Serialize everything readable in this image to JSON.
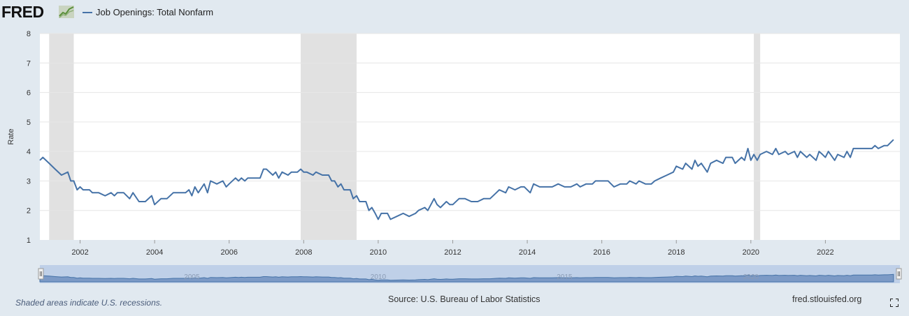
{
  "header": {
    "logo_text": "FRED",
    "legend_label": "Job Openings: Total Nonfarm"
  },
  "footer": {
    "recession_note": "Shaded areas indicate U.S. recessions.",
    "source": "Source: U.S. Bureau of Labor Statistics",
    "site": "fred.stlouisfed.org"
  },
  "navigator": {
    "year_labels": [
      "2005",
      "2010",
      "2015",
      "2020"
    ]
  },
  "colors": {
    "series": "#4572a7",
    "recession": "#e1e1e1",
    "background": "#e1e9f0",
    "plot": "#ffffff",
    "grid": "#e6e6e6",
    "navigator_fill": "#6688bb",
    "navigator_mask": "#bfd0e8"
  },
  "icons": [
    "fred-logo-graph-icon",
    "fullscreen-icon",
    "navigator-left-handle-icon",
    "navigator-right-handle-icon"
  ],
  "chart_data": {
    "type": "line",
    "title": "",
    "ylabel": "Rate",
    "xlabel": "",
    "ylim": [
      1,
      8
    ],
    "yticks": [
      1,
      2,
      3,
      4,
      5,
      6,
      7,
      8
    ],
    "xlim": [
      2000.92,
      2024.0
    ],
    "xticks": [
      2002,
      2004,
      2006,
      2008,
      2010,
      2012,
      2014,
      2016,
      2018,
      2020,
      2022
    ],
    "grid": true,
    "legend_position": "top-left",
    "recessions": [
      [
        2001.17,
        2001.83
      ],
      [
        2007.92,
        2009.42
      ],
      [
        2020.08,
        2020.25
      ]
    ],
    "series": [
      {
        "name": "Job Openings: Total Nonfarm",
        "points": [
          [
            2000.92,
            3.7
          ],
          [
            2001.0,
            3.8
          ],
          [
            2001.17,
            3.6
          ],
          [
            2001.33,
            3.4
          ],
          [
            2001.5,
            3.2
          ],
          [
            2001.67,
            3.3
          ],
          [
            2001.75,
            3.0
          ],
          [
            2001.83,
            3.0
          ],
          [
            2001.92,
            2.7
          ],
          [
            2002.0,
            2.8
          ],
          [
            2002.08,
            2.7
          ],
          [
            2002.25,
            2.7
          ],
          [
            2002.33,
            2.6
          ],
          [
            2002.5,
            2.6
          ],
          [
            2002.67,
            2.5
          ],
          [
            2002.83,
            2.6
          ],
          [
            2002.92,
            2.5
          ],
          [
            2003.0,
            2.6
          ],
          [
            2003.17,
            2.6
          ],
          [
            2003.33,
            2.4
          ],
          [
            2003.42,
            2.6
          ],
          [
            2003.58,
            2.3
          ],
          [
            2003.75,
            2.3
          ],
          [
            2003.92,
            2.5
          ],
          [
            2004.0,
            2.2
          ],
          [
            2004.17,
            2.4
          ],
          [
            2004.33,
            2.4
          ],
          [
            2004.5,
            2.6
          ],
          [
            2004.67,
            2.6
          ],
          [
            2004.83,
            2.6
          ],
          [
            2004.92,
            2.7
          ],
          [
            2005.0,
            2.5
          ],
          [
            2005.08,
            2.8
          ],
          [
            2005.17,
            2.6
          ],
          [
            2005.33,
            2.9
          ],
          [
            2005.42,
            2.6
          ],
          [
            2005.5,
            3.0
          ],
          [
            2005.67,
            2.9
          ],
          [
            2005.83,
            3.0
          ],
          [
            2005.92,
            2.8
          ],
          [
            2006.0,
            2.9
          ],
          [
            2006.17,
            3.1
          ],
          [
            2006.25,
            3.0
          ],
          [
            2006.33,
            3.1
          ],
          [
            2006.42,
            3.0
          ],
          [
            2006.5,
            3.1
          ],
          [
            2006.67,
            3.1
          ],
          [
            2006.83,
            3.1
          ],
          [
            2006.92,
            3.4
          ],
          [
            2007.0,
            3.4
          ],
          [
            2007.17,
            3.2
          ],
          [
            2007.25,
            3.3
          ],
          [
            2007.33,
            3.1
          ],
          [
            2007.42,
            3.3
          ],
          [
            2007.58,
            3.2
          ],
          [
            2007.67,
            3.3
          ],
          [
            2007.83,
            3.3
          ],
          [
            2007.92,
            3.4
          ],
          [
            2008.0,
            3.3
          ],
          [
            2008.08,
            3.3
          ],
          [
            2008.25,
            3.2
          ],
          [
            2008.33,
            3.3
          ],
          [
            2008.5,
            3.2
          ],
          [
            2008.67,
            3.2
          ],
          [
            2008.75,
            3.0
          ],
          [
            2008.83,
            3.0
          ],
          [
            2008.92,
            2.8
          ],
          [
            2009.0,
            2.9
          ],
          [
            2009.08,
            2.7
          ],
          [
            2009.25,
            2.7
          ],
          [
            2009.33,
            2.4
          ],
          [
            2009.42,
            2.5
          ],
          [
            2009.5,
            2.3
          ],
          [
            2009.67,
            2.3
          ],
          [
            2009.75,
            2.0
          ],
          [
            2009.83,
            2.1
          ],
          [
            2009.92,
            1.9
          ],
          [
            2010.0,
            1.7
          ],
          [
            2010.08,
            1.9
          ],
          [
            2010.25,
            1.9
          ],
          [
            2010.33,
            1.7
          ],
          [
            2010.5,
            1.8
          ],
          [
            2010.67,
            1.9
          ],
          [
            2010.83,
            1.8
          ],
          [
            2011.0,
            1.9
          ],
          [
            2011.08,
            2.0
          ],
          [
            2011.25,
            2.1
          ],
          [
            2011.33,
            2.0
          ],
          [
            2011.5,
            2.4
          ],
          [
            2011.58,
            2.2
          ],
          [
            2011.67,
            2.1
          ],
          [
            2011.83,
            2.3
          ],
          [
            2011.92,
            2.2
          ],
          [
            2012.0,
            2.2
          ],
          [
            2012.17,
            2.4
          ],
          [
            2012.33,
            2.4
          ],
          [
            2012.5,
            2.3
          ],
          [
            2012.67,
            2.3
          ],
          [
            2012.83,
            2.4
          ],
          [
            2013.0,
            2.4
          ],
          [
            2013.17,
            2.6
          ],
          [
            2013.25,
            2.7
          ],
          [
            2013.42,
            2.6
          ],
          [
            2013.5,
            2.8
          ],
          [
            2013.67,
            2.7
          ],
          [
            2013.83,
            2.8
          ],
          [
            2013.92,
            2.8
          ],
          [
            2014.08,
            2.6
          ],
          [
            2014.17,
            2.9
          ],
          [
            2014.33,
            2.8
          ],
          [
            2014.5,
            2.8
          ],
          [
            2014.67,
            2.8
          ],
          [
            2014.83,
            2.9
          ],
          [
            2015.0,
            2.8
          ],
          [
            2015.17,
            2.8
          ],
          [
            2015.33,
            2.9
          ],
          [
            2015.42,
            2.8
          ],
          [
            2015.58,
            2.9
          ],
          [
            2015.75,
            2.9
          ],
          [
            2015.83,
            3.0
          ],
          [
            2016.0,
            3.0
          ],
          [
            2016.17,
            3.0
          ],
          [
            2016.33,
            2.8
          ],
          [
            2016.5,
            2.9
          ],
          [
            2016.67,
            2.9
          ],
          [
            2016.75,
            3.0
          ],
          [
            2016.92,
            2.9
          ],
          [
            2017.0,
            3.0
          ],
          [
            2017.17,
            2.9
          ],
          [
            2017.33,
            2.9
          ],
          [
            2017.42,
            3.0
          ],
          [
            2017.58,
            3.1
          ],
          [
            2017.75,
            3.2
          ],
          [
            2017.92,
            3.3
          ],
          [
            2018.0,
            3.5
          ],
          [
            2018.17,
            3.4
          ],
          [
            2018.25,
            3.6
          ],
          [
            2018.42,
            3.4
          ],
          [
            2018.5,
            3.7
          ],
          [
            2018.58,
            3.5
          ],
          [
            2018.67,
            3.6
          ],
          [
            2018.83,
            3.3
          ],
          [
            2018.92,
            3.6
          ],
          [
            2019.08,
            3.7
          ],
          [
            2019.25,
            3.6
          ],
          [
            2019.33,
            3.8
          ],
          [
            2019.5,
            3.8
          ],
          [
            2019.58,
            3.6
          ],
          [
            2019.75,
            3.8
          ],
          [
            2019.83,
            3.7
          ],
          [
            2019.92,
            4.1
          ],
          [
            2020.0,
            3.7
          ],
          [
            2020.08,
            3.9
          ],
          [
            2020.17,
            3.7
          ],
          [
            2020.25,
            3.9
          ],
          [
            2020.42,
            4.0
          ],
          [
            2020.58,
            3.9
          ],
          [
            2020.67,
            4.1
          ],
          [
            2020.75,
            3.9
          ],
          [
            2020.92,
            4.0
          ],
          [
            2021.0,
            3.9
          ],
          [
            2021.17,
            4.0
          ],
          [
            2021.25,
            3.8
          ],
          [
            2021.33,
            4.0
          ],
          [
            2021.5,
            3.8
          ],
          [
            2021.58,
            3.9
          ],
          [
            2021.75,
            3.7
          ],
          [
            2021.83,
            4.0
          ],
          [
            2021.92,
            3.9
          ],
          [
            2022.0,
            3.8
          ],
          [
            2022.08,
            4.0
          ],
          [
            2022.25,
            3.7
          ],
          [
            2022.33,
            3.9
          ],
          [
            2022.5,
            3.8
          ],
          [
            2022.58,
            4.0
          ],
          [
            2022.67,
            3.8
          ],
          [
            2022.75,
            4.1
          ],
          [
            2022.92,
            4.1
          ],
          [
            2023.08,
            4.1
          ],
          [
            2023.25,
            4.1
          ],
          [
            2023.33,
            4.2
          ],
          [
            2023.42,
            4.1
          ],
          [
            2023.58,
            4.2
          ],
          [
            2023.67,
            4.2
          ],
          [
            2023.83,
            4.4
          ]
        ]
      }
    ]
  }
}
